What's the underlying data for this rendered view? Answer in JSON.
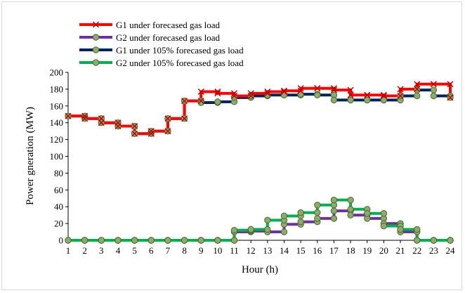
{
  "chart_data": {
    "type": "line",
    "style": "step",
    "title": "",
    "xlabel": "Hour (h)",
    "ylabel": "Power gneration (MW)",
    "x": [
      1,
      2,
      3,
      4,
      5,
      6,
      7,
      8,
      9,
      10,
      11,
      12,
      13,
      14,
      15,
      16,
      17,
      18,
      19,
      20,
      21,
      22,
      23,
      24
    ],
    "x_tick_labels": [
      "1",
      "2",
      "3",
      "4",
      "5",
      "6",
      "7",
      "8",
      "9",
      "10",
      "11",
      "12",
      "13",
      "14",
      "15",
      "16",
      "17",
      "18",
      "19",
      "20",
      "21",
      "22",
      "23",
      "24"
    ],
    "ylim": [
      0,
      200
    ],
    "y_tick_labels": [
      "0",
      "20",
      "40",
      "60",
      "80",
      "100",
      "120",
      "140",
      "160",
      "180",
      "200"
    ],
    "grid": false,
    "legend_position": "top-left",
    "series": [
      {
        "name": "G1 under forecased gas load",
        "color": "#ff0000",
        "marker": "x",
        "values": [
          148,
          145,
          140,
          136,
          127,
          130,
          145,
          166,
          177,
          175,
          172,
          175,
          177,
          178,
          181,
          181,
          179,
          173,
          173,
          172,
          180,
          186,
          186,
          170
        ]
      },
      {
        "name": "G2 under forecased gas load",
        "color": "#7030a0",
        "marker": "circle",
        "values": [
          0,
          0,
          0,
          0,
          0,
          0,
          0,
          0,
          0,
          0,
          10,
          11,
          10,
          19,
          22,
          26,
          35,
          30,
          26,
          20,
          10,
          0,
          0,
          0
        ]
      },
      {
        "name": "G1 under 105% forecased gas load",
        "color": "#002060",
        "marker": "circle",
        "values": [
          148,
          145,
          140,
          136,
          127,
          130,
          145,
          166,
          164,
          165,
          170,
          172,
          173,
          173,
          174,
          173,
          167,
          167,
          167,
          167,
          172,
          179,
          172,
          170
        ]
      },
      {
        "name": "G2 under 105% forecased gas load",
        "color": "#00b050",
        "marker": "circle",
        "values": [
          0,
          0,
          0,
          0,
          0,
          0,
          0,
          0,
          0,
          0,
          12,
          13,
          24,
          29,
          33,
          42,
          48,
          37,
          32,
          17,
          13,
          0,
          0,
          0
        ]
      }
    ]
  }
}
